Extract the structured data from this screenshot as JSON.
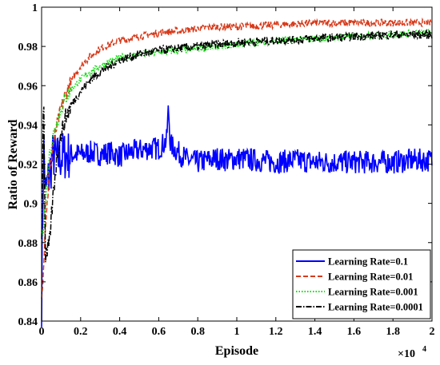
{
  "chart_data": {
    "type": "line",
    "xlabel": "Episode",
    "ylabel": "Ratio of Reward",
    "x_multiplier": "×10",
    "x_multiplier_exp": "4",
    "xlim": [
      0,
      2
    ],
    "ylim": [
      0.84,
      1
    ],
    "xticks": [
      "0",
      "0.2",
      "0.4",
      "0.6",
      "0.8",
      "1",
      "1.2",
      "1.4",
      "1.6",
      "1.8",
      "2"
    ],
    "yticks": [
      "0.84",
      "0.86",
      "0.88",
      "0.9",
      "0.92",
      "0.94",
      "0.96",
      "0.98",
      "1"
    ],
    "grid": false,
    "legend_position": "bottom-right",
    "series": [
      {
        "name": "Learning Rate=0.1",
        "color": "#0000ff",
        "dash": "solid",
        "x": [
          0,
          0.01,
          0.02,
          0.04,
          0.06,
          0.08,
          0.1,
          0.15,
          0.2,
          0.25,
          0.3,
          0.35,
          0.4,
          0.45,
          0.5,
          0.55,
          0.6,
          0.62,
          0.64,
          0.65,
          0.66,
          0.7,
          0.75,
          0.8,
          0.85,
          0.9,
          0.95,
          1.0,
          1.1,
          1.2,
          1.3,
          1.4,
          1.5,
          1.6,
          1.7,
          1.8,
          1.9,
          1.95,
          2.0
        ],
        "y": [
          0.85,
          0.93,
          0.905,
          0.915,
          0.925,
          0.922,
          0.924,
          0.925,
          0.925,
          0.926,
          0.925,
          0.926,
          0.924,
          0.926,
          0.927,
          0.928,
          0.928,
          0.93,
          0.932,
          0.949,
          0.93,
          0.926,
          0.922,
          0.921,
          0.922,
          0.923,
          0.922,
          0.923,
          0.922,
          0.921,
          0.922,
          0.921,
          0.921,
          0.921,
          0.921,
          0.921,
          0.922,
          0.922,
          0.922
        ]
      },
      {
        "name": "Learning Rate=0.01",
        "color": "#d83a1a",
        "dash": "dashed",
        "x": [
          0,
          0.02,
          0.04,
          0.06,
          0.08,
          0.1,
          0.12,
          0.15,
          0.2,
          0.25,
          0.3,
          0.35,
          0.4,
          0.5,
          0.6,
          0.7,
          0.8,
          0.9,
          1.0,
          1.2,
          1.4,
          1.6,
          1.8,
          2.0
        ],
        "y": [
          0.85,
          0.89,
          0.915,
          0.93,
          0.94,
          0.948,
          0.955,
          0.962,
          0.97,
          0.975,
          0.979,
          0.981,
          0.983,
          0.985,
          0.987,
          0.988,
          0.989,
          0.99,
          0.99,
          0.991,
          0.992,
          0.992,
          0.992,
          0.992
        ]
      },
      {
        "name": "Learning Rate=0.001",
        "color": "#00dd00",
        "dash": "dotted",
        "x": [
          0,
          0.02,
          0.04,
          0.06,
          0.08,
          0.1,
          0.12,
          0.15,
          0.2,
          0.25,
          0.3,
          0.35,
          0.4,
          0.5,
          0.6,
          0.7,
          0.8,
          0.9,
          1.0,
          1.2,
          1.4,
          1.6,
          1.8,
          2.0
        ],
        "y": [
          0.88,
          0.9,
          0.925,
          0.935,
          0.942,
          0.948,
          0.953,
          0.958,
          0.963,
          0.967,
          0.97,
          0.972,
          0.974,
          0.976,
          0.977,
          0.978,
          0.979,
          0.98,
          0.981,
          0.983,
          0.984,
          0.985,
          0.986,
          0.987
        ]
      },
      {
        "name": "Learning Rate=0.0001",
        "color": "#000000",
        "dash": "dashdot",
        "x": [
          0,
          0.01,
          0.02,
          0.04,
          0.06,
          0.08,
          0.1,
          0.12,
          0.15,
          0.2,
          0.25,
          0.3,
          0.35,
          0.4,
          0.5,
          0.6,
          0.7,
          0.8,
          0.9,
          1.0,
          1.2,
          1.4,
          1.6,
          1.8,
          2.0
        ],
        "y": [
          0.88,
          0.96,
          0.87,
          0.88,
          0.905,
          0.925,
          0.935,
          0.943,
          0.95,
          0.957,
          0.963,
          0.967,
          0.97,
          0.973,
          0.976,
          0.978,
          0.979,
          0.98,
          0.981,
          0.982,
          0.983,
          0.984,
          0.985,
          0.986,
          0.986
        ]
      }
    ]
  }
}
